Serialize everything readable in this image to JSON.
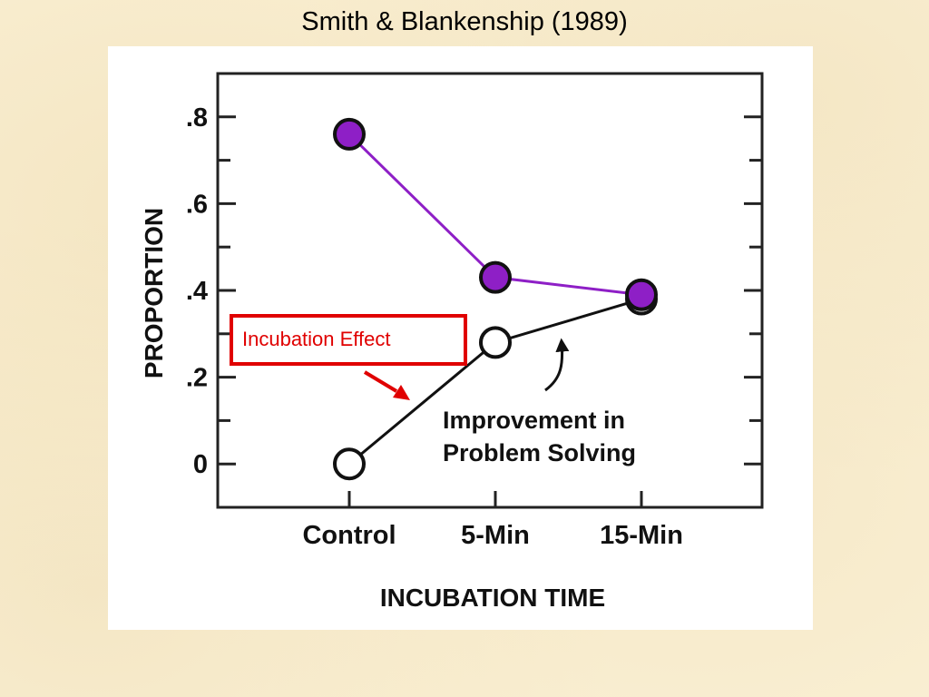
{
  "slide": {
    "title": "Smith & Blankenship (1989)"
  },
  "chart_data": {
    "type": "line",
    "categories": [
      "Control",
      "5-Min",
      "15-Min"
    ],
    "xlabel": "INCUBATION TIME",
    "ylabel": "PROPORTION",
    "ylim": [
      -0.1,
      0.9
    ],
    "yticks": [
      0,
      0.2,
      0.4,
      0.6,
      0.8
    ],
    "ytick_labels": [
      "0",
      ".2",
      ".4",
      ".6",
      ".8"
    ],
    "grid": false,
    "series": [
      {
        "values": [
          0.76,
          0.43,
          0.39
        ],
        "color": "#8e1fc6",
        "marker": "filled-circle"
      },
      {
        "values": [
          0.0,
          0.28,
          0.38
        ],
        "color": "#111111",
        "marker": "open-circle"
      }
    ],
    "annotations": [
      {
        "text_lines": [
          "Improvement in",
          "Problem Solving"
        ]
      },
      {
        "text": "Incubation Effect",
        "color": "#e00000",
        "style": "boxed"
      }
    ]
  }
}
